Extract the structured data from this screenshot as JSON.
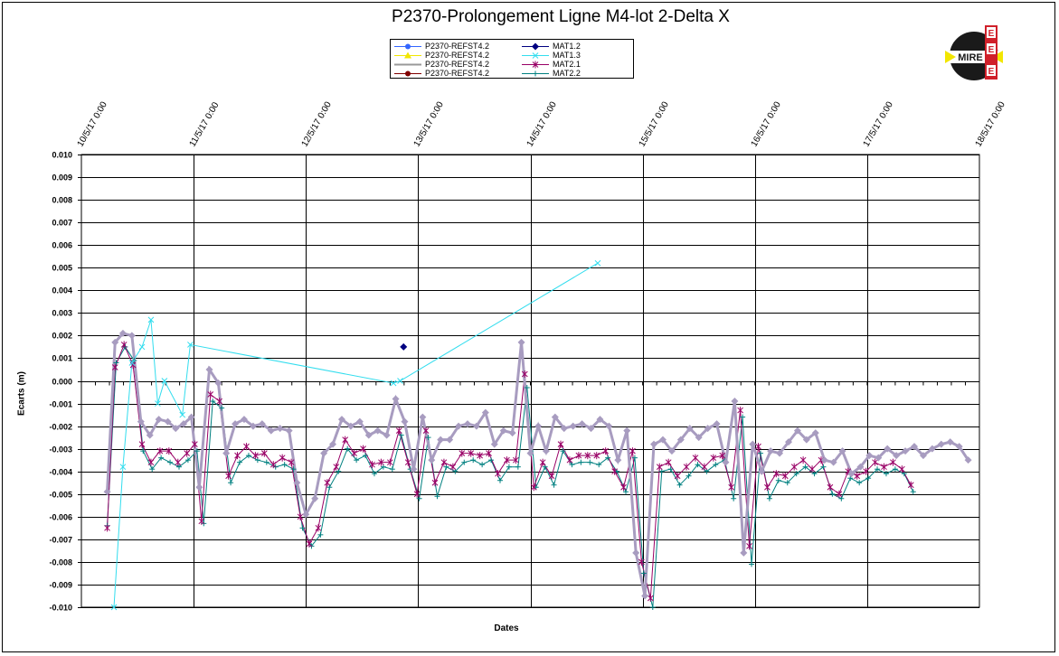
{
  "chart_data": {
    "type": "line",
    "title": "P2370-Prolongement  Ligne  M4-lot 2-Delta  X",
    "xlabel": "Dates",
    "ylabel": "Ecarts (m)",
    "x_ticks": [
      "10/5/17 0:00",
      "11/5/17 0:00",
      "12/5/17 0:00",
      "13/5/17 0:00",
      "14/5/17 0:00",
      "15/5/17 0:00",
      "16/5/17 0:00",
      "17/5/17 0:00",
      "18/5/17 0:00"
    ],
    "ylim": [
      -0.01,
      0.01
    ],
    "y_ticks": [
      "0.010",
      "0.009",
      "0.008",
      "0.007",
      "0.006",
      "0.005",
      "0.004",
      "0.003",
      "0.002",
      "0.001",
      "0.000",
      "-0.001",
      "-0.002",
      "-0.003",
      "-0.004",
      "-0.005",
      "-0.006",
      "-0.007",
      "-0.008",
      "-0.009",
      "-0.010"
    ],
    "grid": true,
    "legend_position": "top-center",
    "legend": [
      {
        "name": "P2370-REFST4.2",
        "color": "#3366ff",
        "marker": "circle"
      },
      {
        "name": "P2370-REFST4.2",
        "color": "#f2e600",
        "marker": "triangle"
      },
      {
        "name": "P2370-REFST4.2",
        "color": "#999999",
        "marker": "none"
      },
      {
        "name": "P2370-REFST4.2",
        "color": "#800000",
        "marker": "circle"
      },
      {
        "name": "MAT1.2",
        "color": "#000080",
        "marker": "diamond"
      },
      {
        "name": "MAT1.3",
        "color": "#33ddee",
        "marker": "x"
      },
      {
        "name": "MAT2.1",
        "color": "#990066",
        "marker": "star"
      },
      {
        "name": "MAT2.2",
        "color": "#008080",
        "marker": "plus"
      }
    ],
    "series": [
      {
        "name": "MAT1.2",
        "color": "#000080",
        "marker": "diamond",
        "x": [
          12.87
        ],
        "y": [
          0.0015
        ]
      },
      {
        "name": "MAT1.3",
        "color": "#33ddee",
        "marker": "x",
        "x": [
          10.29,
          10.37,
          10.45,
          10.54,
          10.62,
          10.68,
          10.74,
          10.9,
          10.97,
          12.78,
          12.84,
          14.6
        ],
        "y": [
          -0.01,
          -0.0038,
          0.0008,
          0.0015,
          0.0027,
          -0.001,
          0.0,
          -0.0015,
          0.0016,
          -0.0001,
          0.0,
          0.0052
        ]
      },
      {
        "name": "P2370-REFST4.2",
        "color": "#a89cc0",
        "marker": "diamond",
        "x": [
          10.23,
          10.3,
          10.37,
          10.45,
          10.53,
          10.61,
          10.69,
          10.77,
          10.84,
          10.91,
          10.98,
          11.05,
          11.14,
          11.22,
          11.29,
          11.37,
          11.45,
          11.53,
          11.61,
          11.69,
          11.77,
          11.85,
          11.92,
          12.0,
          12.08,
          12.16,
          12.24,
          12.32,
          12.4,
          12.48,
          12.56,
          12.64,
          12.72,
          12.8,
          12.88,
          12.96,
          13.04,
          13.12,
          13.2,
          13.28,
          13.36,
          13.44,
          13.52,
          13.6,
          13.68,
          13.76,
          13.84,
          13.92,
          14.0,
          14.07,
          14.14,
          14.22,
          14.3,
          14.38,
          14.46,
          14.54,
          14.62,
          14.7,
          14.78,
          14.86,
          14.94,
          15.02,
          15.1,
          15.18,
          15.26,
          15.34,
          15.42,
          15.5,
          15.58,
          15.66,
          15.74,
          15.82,
          15.9,
          15.98,
          16.06,
          16.14,
          16.22,
          16.3,
          16.38,
          16.46,
          16.54,
          16.62,
          16.7,
          16.78,
          16.86,
          16.94,
          17.02,
          17.1,
          17.18,
          17.26,
          17.34,
          17.42,
          17.5,
          17.58,
          17.66,
          17.74,
          17.82,
          17.9
        ],
        "y": [
          -0.0049,
          0.0017,
          0.0021,
          0.002,
          -0.0018,
          -0.0024,
          -0.0017,
          -0.0018,
          -0.0021,
          -0.0019,
          -0.0016,
          -0.0047,
          0.0005,
          -0.0001,
          -0.0032,
          -0.0019,
          -0.0017,
          -0.002,
          -0.0019,
          -0.0022,
          -0.0021,
          -0.0022,
          -0.0045,
          -0.0059,
          -0.0052,
          -0.0032,
          -0.0028,
          -0.0017,
          -0.002,
          -0.0018,
          -0.0024,
          -0.0022,
          -0.0024,
          -0.0008,
          -0.0018,
          -0.0039,
          -0.0016,
          -0.0035,
          -0.0026,
          -0.0026,
          -0.002,
          -0.0019,
          -0.002,
          -0.0014,
          -0.0028,
          -0.0022,
          -0.0023,
          0.0017,
          -0.0032,
          -0.002,
          -0.0031,
          -0.0016,
          -0.0021,
          -0.002,
          -0.0019,
          -0.0021,
          -0.0017,
          -0.002,
          -0.0035,
          -0.0022,
          -0.0076,
          -0.0095,
          -0.0028,
          -0.0026,
          -0.0031,
          -0.0026,
          -0.0021,
          -0.0025,
          -0.0021,
          -0.0019,
          -0.0036,
          -0.0009,
          -0.0076,
          -0.0028,
          -0.004,
          -0.0031,
          -0.0032,
          -0.0027,
          -0.0022,
          -0.0026,
          -0.0023,
          -0.0035,
          -0.0036,
          -0.0031,
          -0.0041,
          -0.0038,
          -0.0033,
          -0.0034,
          -0.003,
          -0.0033,
          -0.0031,
          -0.0029,
          -0.0033,
          -0.003,
          -0.0028,
          -0.0027,
          -0.0029,
          -0.0035
        ]
      },
      {
        "name": "MAT2.1",
        "color": "#990066",
        "marker": "star",
        "x": [
          10.23,
          10.3,
          10.38,
          10.46,
          10.54,
          10.62,
          10.7,
          10.78,
          10.86,
          10.94,
          11.01,
          11.07,
          11.15,
          11.23,
          11.31,
          11.39,
          11.47,
          11.55,
          11.63,
          11.71,
          11.79,
          11.87,
          11.95,
          12.03,
          12.11,
          12.19,
          12.27,
          12.35,
          12.43,
          12.51,
          12.59,
          12.67,
          12.75,
          12.83,
          12.91,
          12.99,
          13.07,
          13.15,
          13.23,
          13.31,
          13.39,
          13.47,
          13.55,
          13.63,
          13.71,
          13.79,
          13.87,
          13.95,
          14.03,
          14.11,
          14.19,
          14.27,
          14.35,
          14.43,
          14.51,
          14.59,
          14.67,
          14.75,
          14.83,
          14.91,
          14.99,
          15.07,
          15.15,
          15.23,
          15.31,
          15.39,
          15.47,
          15.55,
          15.63,
          15.71,
          15.79,
          15.87,
          15.95,
          16.03,
          16.11,
          16.19,
          16.27,
          16.35,
          16.43,
          16.51,
          16.59,
          16.67,
          16.75,
          16.83,
          16.91,
          16.99,
          17.07,
          17.15,
          17.23,
          17.31,
          17.39
        ],
        "y": [
          -0.0065,
          0.0006,
          0.0016,
          0.0007,
          -0.0028,
          -0.0036,
          -0.0031,
          -0.0031,
          -0.0036,
          -0.0032,
          -0.0028,
          -0.0062,
          -0.0006,
          -0.0009,
          -0.0042,
          -0.0033,
          -0.0029,
          -0.0033,
          -0.0032,
          -0.0037,
          -0.0034,
          -0.0036,
          -0.006,
          -0.0072,
          -0.0065,
          -0.0045,
          -0.0038,
          -0.0026,
          -0.0032,
          -0.003,
          -0.0037,
          -0.0036,
          -0.0036,
          -0.0022,
          -0.0036,
          -0.005,
          -0.0022,
          -0.0045,
          -0.0036,
          -0.0038,
          -0.0032,
          -0.0032,
          -0.0033,
          -0.0032,
          -0.0041,
          -0.0035,
          -0.0035,
          0.0003,
          -0.0047,
          -0.0036,
          -0.0042,
          -0.0028,
          -0.0035,
          -0.0033,
          -0.0033,
          -0.0033,
          -0.0031,
          -0.004,
          -0.0047,
          -0.0031,
          -0.008,
          -0.0096,
          -0.0038,
          -0.0036,
          -0.0042,
          -0.0038,
          -0.0034,
          -0.0038,
          -0.0034,
          -0.0033,
          -0.0047,
          -0.0013,
          -0.0073,
          -0.0029,
          -0.0047,
          -0.0041,
          -0.0042,
          -0.0038,
          -0.0035,
          -0.0039,
          -0.0035,
          -0.0047,
          -0.005,
          -0.004,
          -0.0042,
          -0.004,
          -0.0036,
          -0.0038,
          -0.0036,
          -0.0039,
          -0.0046
        ]
      },
      {
        "name": "MAT2.2",
        "color": "#008080",
        "marker": "plus",
        "x": [
          10.23,
          10.31,
          10.39,
          10.47,
          10.55,
          10.63,
          10.71,
          10.79,
          10.87,
          10.95,
          11.03,
          11.09,
          11.17,
          11.25,
          11.33,
          11.41,
          11.49,
          11.57,
          11.65,
          11.73,
          11.81,
          11.89,
          11.97,
          12.05,
          12.13,
          12.21,
          12.29,
          12.37,
          12.45,
          12.53,
          12.61,
          12.69,
          12.77,
          12.85,
          12.93,
          13.01,
          13.09,
          13.17,
          13.25,
          13.33,
          13.41,
          13.49,
          13.57,
          13.65,
          13.73,
          13.81,
          13.89,
          13.97,
          14.05,
          14.13,
          14.21,
          14.29,
          14.37,
          14.45,
          14.53,
          14.61,
          14.69,
          14.77,
          14.85,
          14.93,
          15.01,
          15.09,
          15.17,
          15.25,
          15.33,
          15.41,
          15.49,
          15.57,
          15.65,
          15.73,
          15.81,
          15.89,
          15.97,
          16.05,
          16.13,
          16.21,
          16.29,
          16.37,
          16.45,
          16.53,
          16.61,
          16.69,
          16.77,
          16.85,
          16.93,
          17.01,
          17.09,
          17.17,
          17.25,
          17.33,
          17.41
        ],
        "y": [
          -0.0064,
          0.0008,
          0.0015,
          0.0009,
          -0.0031,
          -0.0039,
          -0.0034,
          -0.0036,
          -0.0038,
          -0.0035,
          -0.0031,
          -0.0063,
          -0.0009,
          -0.0012,
          -0.0045,
          -0.0036,
          -0.0033,
          -0.0035,
          -0.0036,
          -0.0038,
          -0.0037,
          -0.0039,
          -0.0065,
          -0.0073,
          -0.0068,
          -0.0047,
          -0.004,
          -0.003,
          -0.0035,
          -0.0033,
          -0.0041,
          -0.0038,
          -0.0039,
          -0.0024,
          -0.0039,
          -0.0052,
          -0.0025,
          -0.0051,
          -0.0038,
          -0.004,
          -0.0036,
          -0.0035,
          -0.0037,
          -0.0035,
          -0.0044,
          -0.0038,
          -0.0038,
          -0.0003,
          -0.0047,
          -0.0038,
          -0.0046,
          -0.0031,
          -0.0037,
          -0.0036,
          -0.0036,
          -0.0037,
          -0.0034,
          -0.004,
          -0.0049,
          -0.0034,
          -0.0085,
          -0.01,
          -0.004,
          -0.0039,
          -0.0046,
          -0.0042,
          -0.0037,
          -0.004,
          -0.0037,
          -0.0035,
          -0.0052,
          -0.0016,
          -0.0081,
          -0.0032,
          -0.0052,
          -0.0044,
          -0.0045,
          -0.0041,
          -0.0038,
          -0.0041,
          -0.0038,
          -0.005,
          -0.0052,
          -0.0043,
          -0.0045,
          -0.0043,
          -0.0039,
          -0.0041,
          -0.0039,
          -0.0041,
          -0.0049
        ]
      }
    ]
  },
  "logo": {
    "text": "MIRE",
    "side_letters": [
      "E",
      "E",
      "E"
    ]
  }
}
